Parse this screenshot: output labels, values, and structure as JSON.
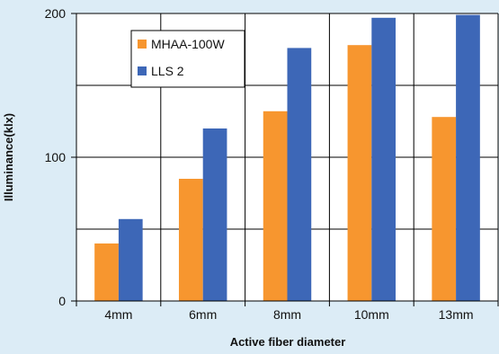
{
  "chart_data": {
    "type": "bar",
    "categories": [
      "4mm",
      "6mm",
      "8mm",
      "10mm",
      "13mm"
    ],
    "series": [
      {
        "name": "MHAA-100W",
        "color": "#f7962f",
        "values": [
          40,
          85,
          132,
          178,
          128
        ]
      },
      {
        "name": "LLS 2",
        "color": "#3d67b7",
        "values": [
          57,
          120,
          176,
          197,
          199
        ]
      }
    ],
    "xlabel": "Active fiber diameter",
    "ylabel": "Illuminance(klx)",
    "ylim": [
      0,
      200
    ],
    "yticks": [
      0,
      100,
      200
    ],
    "grid": true,
    "legend_position": "top-left"
  }
}
